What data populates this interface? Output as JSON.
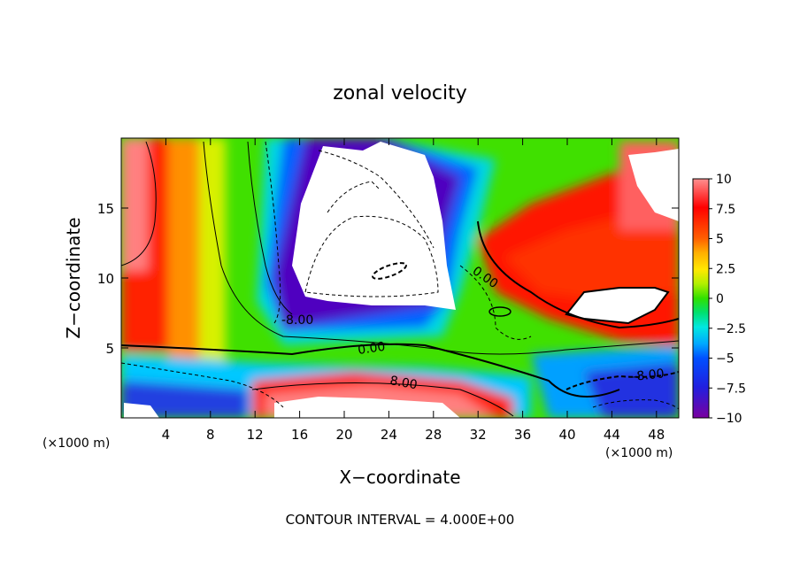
{
  "chart_data": {
    "type": "heatmap",
    "title": "zonal velocity",
    "xlabel": "X−coordinate",
    "ylabel": "Z−coordinate",
    "x_unit_label_left": "(×1000 m)",
    "x_unit_label_right": "(×1000 m)",
    "footer": "CONTOUR INTERVAL = 4.000E+00",
    "xlim": [
      0,
      50
    ],
    "ylim": [
      0,
      20
    ],
    "xticks": [
      4,
      8,
      12,
      16,
      20,
      24,
      28,
      32,
      36,
      40,
      44,
      48
    ],
    "xtick_labels": [
      "4",
      "8",
      "12",
      "16",
      "20",
      "24",
      "28",
      "32",
      "36",
      "40",
      "44",
      "48"
    ],
    "yticks": [
      5,
      10,
      15
    ],
    "ytick_labels": [
      "5",
      "10",
      "15"
    ],
    "colorbar": {
      "vmin": -10,
      "vmax": 10,
      "ticks": [
        10,
        7.5,
        5,
        2.5,
        0,
        -2.5,
        -5,
        -7.5,
        -10
      ],
      "tick_labels": [
        "10",
        "7.5",
        "5",
        "2.5",
        "0",
        "−2.5",
        "−5",
        "−7.5",
        "−10"
      ],
      "colors": [
        "#7a00a0",
        "#3020e0",
        "#0050ff",
        "#00a0ff",
        "#00e8e0",
        "#00e060",
        "#40e000",
        "#c0f000",
        "#ffe800",
        "#ffa000",
        "#ff5000",
        "#ff0000",
        "#ff8080"
      ]
    },
    "contour_interval": 4.0,
    "contour_labels": [
      "-8.00",
      "0.00",
      "0.00",
      "8.00",
      "-8.00"
    ],
    "grid": false
  }
}
